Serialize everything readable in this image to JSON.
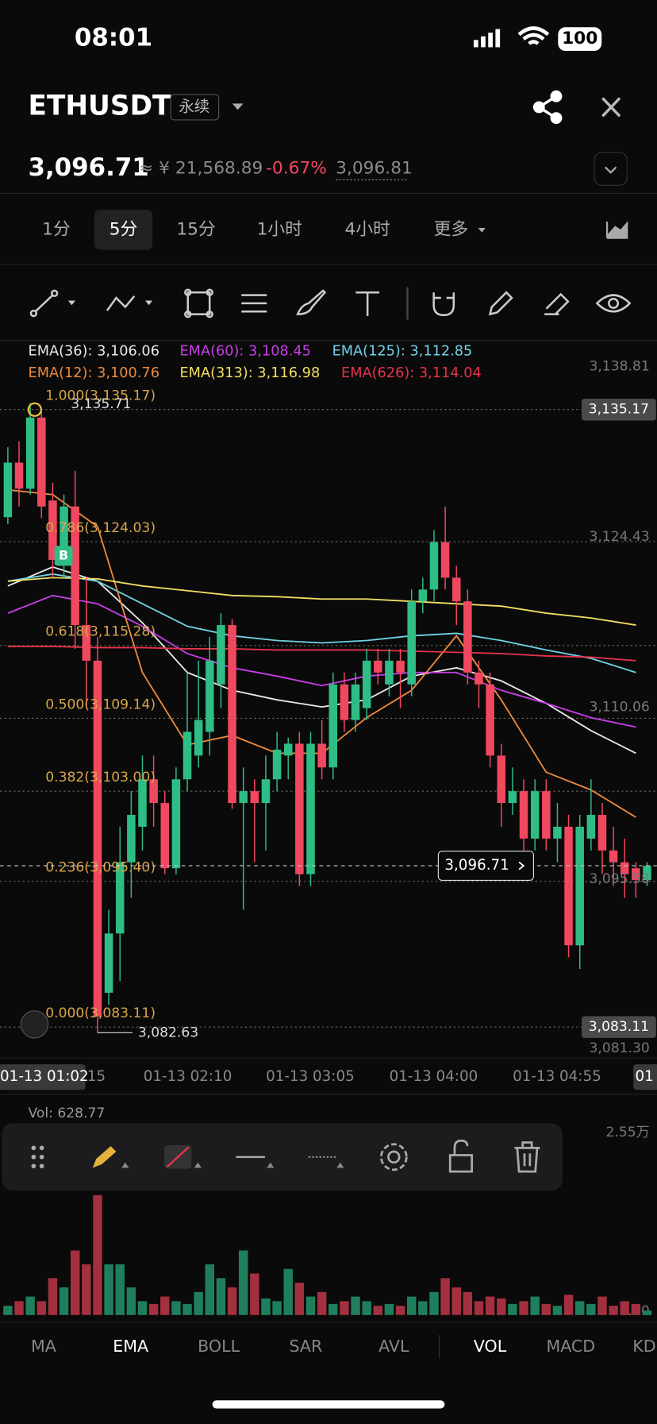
{
  "status": {
    "time": "08:01",
    "battery": "100"
  },
  "header": {
    "symbol": "ETHUSDT",
    "contract": "永续",
    "price": "3,096.71",
    "cny": "≈ ¥ 21,568.89",
    "change": "-0.67%",
    "mark_price": "3,096.81"
  },
  "tabs": [
    "1分",
    "5分",
    "15分",
    "1小时",
    "4小时",
    "更多"
  ],
  "chart": {
    "ylim": [
      3080.5,
      3140.76
    ],
    "legend": [
      {
        "legend": "EMA(36): 3,106.06",
        "color": "#e8e8e8",
        "values": [
          3120.3,
          3121.9,
          3120.7,
          3117.2,
          3113.0,
          3111.5,
          3110.7,
          3110.1,
          3110.7,
          3112.7,
          3113.4,
          3112.3,
          3110.4,
          3108.1,
          3106.2
        ]
      },
      {
        "legend": "EMA(60): 3,108.45",
        "color": "#c93ee8",
        "values": [
          3118.0,
          3119.5,
          3118.8,
          3116.9,
          3114.6,
          3113.4,
          3112.7,
          3111.9,
          3112.7,
          3113.0,
          3113.0,
          3111.5,
          3110.4,
          3109.2,
          3108.4
        ]
      },
      {
        "legend": "EMA(125): 3,112.85",
        "color": "#6fd3e6",
        "values": [
          3120.7,
          3121.3,
          3120.7,
          3118.8,
          3116.9,
          3116.1,
          3115.7,
          3115.5,
          3115.7,
          3116.1,
          3116.3,
          3115.7,
          3114.9,
          3114.2,
          3113.0
        ]
      },
      {
        "legend": "EMA(12): 3,100.76",
        "color": "#ee8a3c",
        "values": [
          3128.4,
          3128.0,
          3125.3,
          3113.0,
          3106.9,
          3107.7,
          3106.2,
          3106.2,
          3109.2,
          3111.5,
          3116.1,
          3110.7,
          3104.6,
          3103.1,
          3100.8
        ]
      },
      {
        "legend": "EMA(313): 3,116.98",
        "color": "#f2df62",
        "values": [
          3120.7,
          3121.0,
          3120.9,
          3120.3,
          3119.9,
          3119.5,
          3119.4,
          3119.2,
          3119.2,
          3119.0,
          3118.8,
          3118.6,
          3118.0,
          3117.6,
          3117.0
        ]
      },
      {
        "legend": "EMA(626): 3,114.04",
        "color": "#e5334b",
        "values": [
          3115.2,
          3115.2,
          3115.1,
          3115.1,
          3115.0,
          3115.0,
          3114.9,
          3114.9,
          3114.9,
          3114.8,
          3114.7,
          3114.6,
          3114.4,
          3114.3,
          3114.0
        ]
      }
    ],
    "yticks": [
      {
        "value": 3138.81,
        "label": "3,138.81"
      },
      {
        "value": 3124.43,
        "label": "3,124.43"
      },
      {
        "value": 3110.06,
        "label": "3,110.06"
      },
      {
        "value": 3095.58,
        "label": "3,095.58"
      },
      {
        "value": 3081.3,
        "label": "3,081.30"
      }
    ],
    "boxed_ticks": [
      {
        "value": 3135.17,
        "label": "3,135.17"
      },
      {
        "value": 3083.11,
        "label": "3,083.11"
      }
    ],
    "fib": [
      {
        "value": 3135.17,
        "label": "1.000(3,135.17)"
      },
      {
        "value": 3124.03,
        "label": "0.786(3,124.03)"
      },
      {
        "value": 3115.28,
        "label": "0.618(3,115.28)"
      },
      {
        "value": 3109.14,
        "label": "0.500(3,109.14)"
      },
      {
        "value": 3103.0,
        "label": "0.382(3,103.00)"
      },
      {
        "value": 3095.4,
        "label": "0.236(3,095.40)"
      },
      {
        "value": 3083.11,
        "label": "0.000(3,083.11)"
      }
    ],
    "high": {
      "value": 3135.71,
      "label": "3,135.71"
    },
    "low": {
      "value": 3082.63,
      "label": "3,082.63"
    },
    "last": {
      "value": 3096.71,
      "label": "3,096.71"
    },
    "marker": "B",
    "candles": [
      {
        "o": 3126.1,
        "h": 3132,
        "l": 3125.5,
        "c": 3130.7
      },
      {
        "o": 3130.7,
        "h": 3132.5,
        "l": 3127,
        "c": 3128.5
      },
      {
        "o": 3128.5,
        "h": 3135.71,
        "l": 3128,
        "c": 3134.5
      },
      {
        "o": 3134.5,
        "h": 3135,
        "l": 3126,
        "c": 3127
      },
      {
        "o": 3127.5,
        "h": 3129,
        "l": 3121,
        "c": 3122.5
      },
      {
        "o": 3122.5,
        "h": 3128,
        "l": 3121,
        "c": 3127
      },
      {
        "o": 3127,
        "h": 3130,
        "l": 3115,
        "c": 3117
      },
      {
        "o": 3117,
        "h": 3121,
        "l": 3110,
        "c": 3114
      },
      {
        "o": 3114,
        "h": 3116,
        "l": 3082.63,
        "c": 3084
      },
      {
        "o": 3086,
        "h": 3093,
        "l": 3085,
        "c": 3091
      },
      {
        "o": 3091,
        "h": 3100,
        "l": 3087,
        "c": 3097
      },
      {
        "o": 3097,
        "h": 3103,
        "l": 3094,
        "c": 3101
      },
      {
        "o": 3100,
        "h": 3106,
        "l": 3098,
        "c": 3104
      },
      {
        "o": 3104,
        "h": 3106,
        "l": 3100,
        "c": 3102
      },
      {
        "o": 3102,
        "h": 3103,
        "l": 3096,
        "c": 3096.5
      },
      {
        "o": 3096.5,
        "h": 3105,
        "l": 3096,
        "c": 3104
      },
      {
        "o": 3104,
        "h": 3113,
        "l": 3103,
        "c": 3108
      },
      {
        "o": 3106,
        "h": 3114,
        "l": 3105,
        "c": 3109
      },
      {
        "o": 3108,
        "h": 3116,
        "l": 3106,
        "c": 3114
      },
      {
        "o": 3112,
        "h": 3118,
        "l": 3110,
        "c": 3117
      },
      {
        "o": 3117,
        "h": 3117.5,
        "l": 3101.5,
        "c": 3102
      },
      {
        "o": 3102,
        "h": 3105,
        "l": 3093,
        "c": 3103
      },
      {
        "o": 3103,
        "h": 3104,
        "l": 3097,
        "c": 3102
      },
      {
        "o": 3102,
        "h": 3106,
        "l": 3098,
        "c": 3104
      },
      {
        "o": 3104,
        "h": 3108,
        "l": 3103,
        "c": 3106.5
      },
      {
        "o": 3106,
        "h": 3107.5,
        "l": 3104,
        "c": 3107
      },
      {
        "o": 3107,
        "h": 3108,
        "l": 3095,
        "c": 3096
      },
      {
        "o": 3096,
        "h": 3108,
        "l": 3095,
        "c": 3107
      },
      {
        "o": 3107,
        "h": 3109,
        "l": 3104,
        "c": 3105
      },
      {
        "o": 3105,
        "h": 3113,
        "l": 3104,
        "c": 3112
      },
      {
        "o": 3112,
        "h": 3113,
        "l": 3108,
        "c": 3109
      },
      {
        "o": 3109,
        "h": 3113,
        "l": 3108,
        "c": 3112
      },
      {
        "o": 3110,
        "h": 3115,
        "l": 3109,
        "c": 3114
      },
      {
        "o": 3114,
        "h": 3115,
        "l": 3112,
        "c": 3113
      },
      {
        "o": 3112,
        "h": 3115,
        "l": 3111,
        "c": 3114
      },
      {
        "o": 3114,
        "h": 3115,
        "l": 3110,
        "c": 3113
      },
      {
        "o": 3112,
        "h": 3120,
        "l": 3111,
        "c": 3119
      },
      {
        "o": 3119,
        "h": 3121,
        "l": 3118,
        "c": 3120
      },
      {
        "o": 3120,
        "h": 3125,
        "l": 3119,
        "c": 3124
      },
      {
        "o": 3124,
        "h": 3127,
        "l": 3120,
        "c": 3121
      },
      {
        "o": 3121,
        "h": 3122,
        "l": 3117,
        "c": 3119
      },
      {
        "o": 3119,
        "h": 3120,
        "l": 3112,
        "c": 3113
      },
      {
        "o": 3113,
        "h": 3114,
        "l": 3110,
        "c": 3112
      },
      {
        "o": 3112,
        "h": 3113,
        "l": 3105,
        "c": 3106
      },
      {
        "o": 3106,
        "h": 3107,
        "l": 3100,
        "c": 3102
      },
      {
        "o": 3102,
        "h": 3105,
        "l": 3101,
        "c": 3103
      },
      {
        "o": 3103,
        "h": 3104,
        "l": 3098,
        "c": 3099
      },
      {
        "o": 3099,
        "h": 3104,
        "l": 3098,
        "c": 3103
      },
      {
        "o": 3103,
        "h": 3104,
        "l": 3098,
        "c": 3099
      },
      {
        "o": 3099,
        "h": 3102,
        "l": 3097,
        "c": 3100
      },
      {
        "o": 3100,
        "h": 3101,
        "l": 3089,
        "c": 3090
      },
      {
        "o": 3090,
        "h": 3101,
        "l": 3088,
        "c": 3100
      },
      {
        "o": 3099,
        "h": 3104,
        "l": 3098,
        "c": 3101
      },
      {
        "o": 3101,
        "h": 3102,
        "l": 3096,
        "c": 3098
      },
      {
        "o": 3098,
        "h": 3100,
        "l": 3095,
        "c": 3097
      },
      {
        "o": 3097,
        "h": 3099,
        "l": 3094,
        "c": 3096
      },
      {
        "o": 3096.5,
        "h": 3097,
        "l": 3094,
        "c": 3095.5
      },
      {
        "o": 3095.5,
        "h": 3097,
        "l": 3095,
        "c": 3096.71
      }
    ],
    "time_axis": [
      "01-13 01:02",
      "15",
      "01-13 02:10",
      "01-13 03:05",
      "01-13 04:00",
      "01-13 04:55",
      "01"
    ]
  },
  "volume": {
    "label": "Vol: 628.77",
    "ylim": [
      0,
      25500
    ],
    "yticks": [
      {
        "value": 25500,
        "label": "2.55万"
      },
      {
        "value": 0,
        "label": "0.00"
      }
    ],
    "values": [
      1288,
      1932,
      2576,
      1932,
      5152,
      3864,
      9015,
      7083,
      16742,
      7083,
      7083,
      3864,
      1932,
      1545,
      2576,
      1932,
      1545,
      3220,
      7083,
      5152,
      3864,
      9015,
      5795,
      2318,
      1932,
      6439,
      4508,
      2576,
      3220,
      1545,
      1932,
      2576,
      1932,
      1288,
      1545,
      1288,
      2576,
      1932,
      3220,
      5152,
      3864,
      3220,
      1932,
      2576,
      2318,
      1545,
      1932,
      2576,
      1545,
      1288,
      2833,
      1932,
      1545,
      2576,
      1288,
      1932,
      1545,
      628.77
    ]
  },
  "indicators": [
    "MA",
    "EMA",
    "BOLL",
    "SAR",
    "AVL",
    "VOL",
    "MACD",
    "KD"
  ]
}
